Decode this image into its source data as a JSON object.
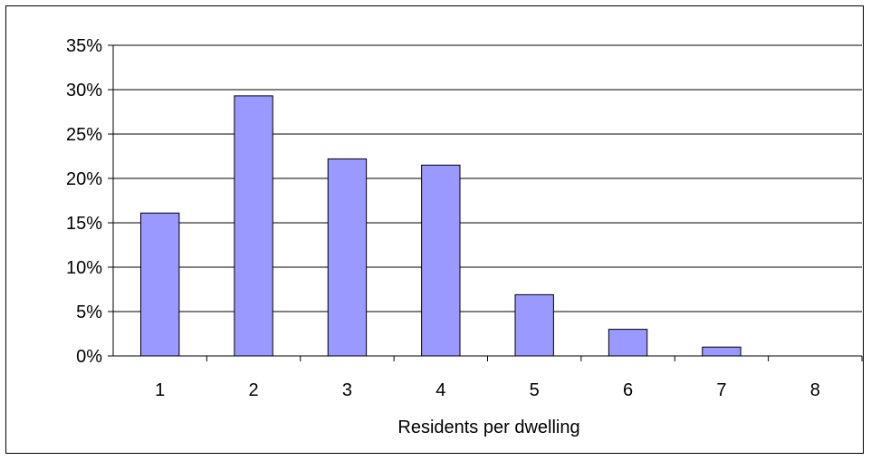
{
  "chart_data": {
    "type": "bar",
    "title": "",
    "xlabel": "Residents per dwelling",
    "ylabel": "",
    "categories": [
      "1",
      "2",
      "3",
      "4",
      "5",
      "6",
      "7",
      "8"
    ],
    "values": [
      16.1,
      29.3,
      22.2,
      21.5,
      6.9,
      3.0,
      1.0,
      0.0
    ],
    "unit": "%",
    "ylim": [
      0,
      35
    ],
    "yticks": [
      "0%",
      "5%",
      "10%",
      "15%",
      "20%",
      "25%",
      "30%",
      "35%"
    ],
    "grid": true,
    "legend": "none",
    "colors": {
      "bar_fill": "#9999ff",
      "bar_stroke": "#000000",
      "grid": "#000000"
    }
  }
}
